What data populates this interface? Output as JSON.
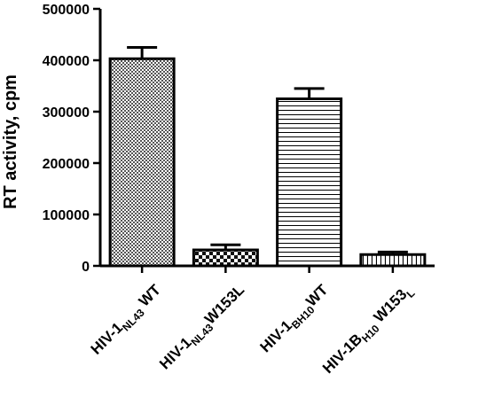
{
  "chart_data": {
    "type": "bar",
    "title": "",
    "xlabel": "",
    "ylabel": "RT activity, cpm",
    "ylim": [
      0,
      500000
    ],
    "yticks": [
      0,
      100000,
      200000,
      300000,
      400000,
      500000
    ],
    "yticks_labels": [
      "0",
      "100000",
      "200000",
      "300000",
      "400000",
      "500000"
    ],
    "grid": false,
    "legend": "none",
    "categories": [
      {
        "pre": "HIV-1",
        "sub": "NL43",
        "post": " WT",
        "pattern": "checker"
      },
      {
        "pre": "HIV-1",
        "sub": "NL43",
        "post": "W153L",
        "pattern": "checker-bold"
      },
      {
        "pre": "HIV-1",
        "sub": "BH10",
        "post": "WT",
        "pattern": "horizontal-lines"
      },
      {
        "pre": "HIV-1B",
        "sub": "H10",
        "post": " W153",
        "sub2": "L",
        "pattern": "vertical-lines"
      }
    ],
    "values": [
      403000,
      31000,
      325000,
      22000
    ],
    "errors": [
      22000,
      10000,
      20000,
      5000
    ],
    "colors": {
      "bar_stroke": "#000000",
      "fill": "#ffffff",
      "axis": "#000000"
    }
  }
}
